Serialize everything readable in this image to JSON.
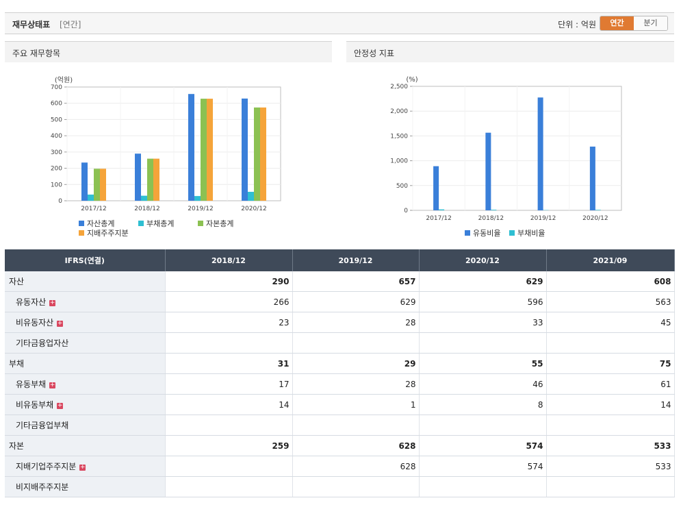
{
  "header": {
    "title": "재무상태표",
    "subtitle": "[연간]",
    "unit_label": "단위 : 억원",
    "period_tabs": [
      "연간",
      "분기"
    ]
  },
  "panels": {
    "left_title": "주요 재무항목",
    "right_title": "안정성 지표"
  },
  "chart_data": [
    {
      "type": "bar",
      "ylabel": "(억원)",
      "ylim": [
        0,
        700
      ],
      "yticks": [
        0,
        100,
        200,
        300,
        400,
        500,
        600,
        700
      ],
      "categories": [
        "2017/12",
        "2018/12",
        "2019/12",
        "2020/12"
      ],
      "series": [
        {
          "name": "자산총계",
          "color": "#3a7fd9",
          "values": [
            235,
            290,
            657,
            629
          ]
        },
        {
          "name": "부채총계",
          "color": "#2fbfd2",
          "values": [
            38,
            31,
            29,
            55
          ]
        },
        {
          "name": "자본총계",
          "color": "#8cc152",
          "values": [
            197,
            259,
            628,
            574
          ]
        },
        {
          "name": "지배주주지분",
          "color": "#f5a43a",
          "values": [
            197,
            259,
            628,
            574
          ]
        }
      ],
      "legend_position": "bottom"
    },
    {
      "type": "bar",
      "ylabel": "(%)",
      "ylim": [
        0,
        2500
      ],
      "yticks": [
        "0",
        "500",
        "1,000",
        "1,500",
        "2,000",
        "2,500"
      ],
      "categories": [
        "2017/12",
        "2018/12",
        "2019/12",
        "2020/12"
      ],
      "series": [
        {
          "name": "유동비율",
          "color": "#3a7fd9",
          "values": [
            890,
            1565,
            2275,
            1285
          ]
        },
        {
          "name": "부채비율",
          "color": "#2fbfd2",
          "values": [
            19,
            12,
            5,
            10
          ]
        }
      ],
      "legend_position": "bottom"
    }
  ],
  "table": {
    "header_label": "IFRS(연결)",
    "columns": [
      "2018/12",
      "2019/12",
      "2020/12",
      "2021/09"
    ],
    "rows": [
      {
        "label": "자산",
        "level": 0,
        "bold": true,
        "expand": false,
        "values": [
          "290",
          "657",
          "629",
          "608"
        ]
      },
      {
        "label": "유동자산",
        "level": 1,
        "bold": false,
        "expand": true,
        "values": [
          "266",
          "629",
          "596",
          "563"
        ]
      },
      {
        "label": "비유동자산",
        "level": 1,
        "bold": false,
        "expand": true,
        "values": [
          "23",
          "28",
          "33",
          "45"
        ]
      },
      {
        "label": "기타금융업자산",
        "level": 1,
        "bold": false,
        "expand": false,
        "values": [
          "",
          "",
          "",
          ""
        ]
      },
      {
        "label": "부채",
        "level": 0,
        "bold": true,
        "expand": false,
        "values": [
          "31",
          "29",
          "55",
          "75"
        ]
      },
      {
        "label": "유동부채",
        "level": 1,
        "bold": false,
        "expand": true,
        "values": [
          "17",
          "28",
          "46",
          "61"
        ]
      },
      {
        "label": "비유동부채",
        "level": 1,
        "bold": false,
        "expand": true,
        "values": [
          "14",
          "1",
          "8",
          "14"
        ]
      },
      {
        "label": "기타금융업부채",
        "level": 1,
        "bold": false,
        "expand": false,
        "values": [
          "",
          "",
          "",
          ""
        ]
      },
      {
        "label": "자본",
        "level": 0,
        "bold": true,
        "expand": false,
        "values": [
          "259",
          "628",
          "574",
          "533"
        ]
      },
      {
        "label": "지배기업주주지분",
        "level": 1,
        "bold": false,
        "expand": true,
        "values": [
          "",
          "628",
          "574",
          "533"
        ]
      },
      {
        "label": "비지배주주지분",
        "level": 1,
        "bold": false,
        "expand": false,
        "values": [
          "",
          "",
          "",
          ""
        ]
      }
    ]
  }
}
